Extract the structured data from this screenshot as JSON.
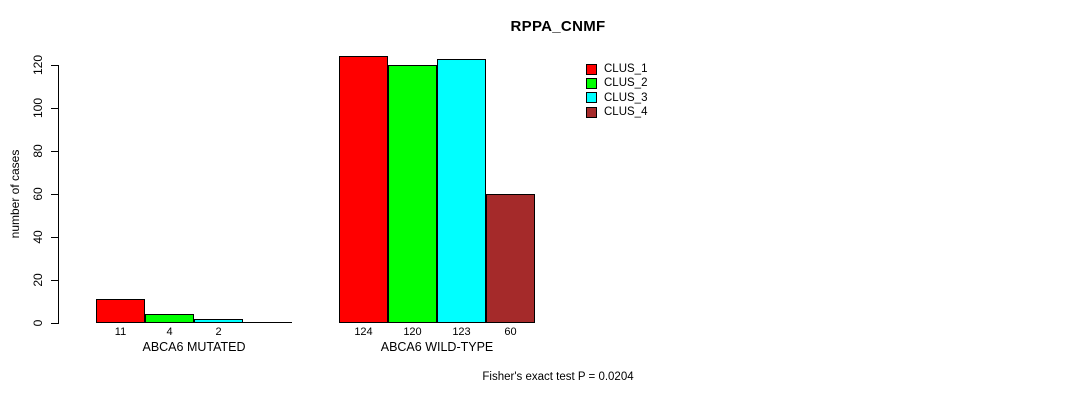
{
  "chart_data": {
    "type": "bar",
    "title": "RPPA_CNMF",
    "ylabel": "number of cases",
    "xlabel": "",
    "footnote": "Fisher's exact test P = 0.0204",
    "ylim": [
      0,
      120
    ],
    "yticks": [
      0,
      20,
      40,
      60,
      80,
      100,
      120
    ],
    "grid": false,
    "legend_position": "top-right",
    "background_color": "#ffffff",
    "axis_color": "#000000",
    "categories": [
      "ABCA6 MUTATED",
      "ABCA6 WILD-TYPE"
    ],
    "series": [
      {
        "name": "CLUS_1",
        "color": "#ff0000",
        "values": [
          11,
          124
        ]
      },
      {
        "name": "CLUS_2",
        "color": "#00ff00",
        "values": [
          4,
          120
        ]
      },
      {
        "name": "CLUS_3",
        "color": "#00ffff",
        "values": [
          2,
          123
        ]
      },
      {
        "name": "CLUS_4",
        "color": "#a52a2a",
        "values": [
          0,
          60
        ]
      }
    ],
    "bar_labels": [
      [
        "11",
        "4",
        "2",
        ""
      ],
      [
        "124",
        "120",
        "123",
        "60"
      ]
    ]
  }
}
